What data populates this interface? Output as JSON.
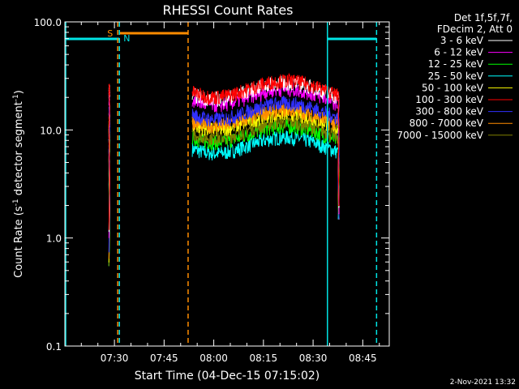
{
  "chart_data": {
    "type": "line",
    "title": "RHESSI Count Rates",
    "xlabel": "Start Time (04-Dec-15 07:15:02)",
    "ylabel_main": "Count Rate (s",
    "ylabel_sup1": "-1",
    "ylabel_mid": " detector segment",
    "ylabel_sup2": "-1",
    "ylabel_end": ")",
    "yscale": "log",
    "ylim": [
      0.1,
      100.0
    ],
    "xlim": [
      "07:15:02",
      "08:53:00"
    ],
    "y_ticks": [
      "0.1",
      "1.0",
      "10.0",
      "100.0"
    ],
    "x_ticks": [
      "07:30",
      "07:45",
      "08:00",
      "08:15",
      "08:30",
      "08:45"
    ],
    "legend_placement": "top-right",
    "legend_header": [
      "Det 1f,5f,7f,",
      "FDecim 2, Att 0"
    ],
    "series": [
      {
        "name": "3 - 6 keV",
        "color": "#ffffff"
      },
      {
        "name": "6 - 12 keV",
        "color": "#ff00ff"
      },
      {
        "name": "12 - 25 keV",
        "color": "#00ff00"
      },
      {
        "name": "25 - 50 keV",
        "color": "#00ffff"
      },
      {
        "name": "50 - 100 keV",
        "color": "#ffff00"
      },
      {
        "name": "100 - 300 keV",
        "color": "#ff0000"
      },
      {
        "name": "300 - 800 keV",
        "color": "#3030ff"
      },
      {
        "name": "800 - 7000 keV",
        "color": "#ff8c00"
      },
      {
        "name": "7000 - 15000 keV",
        "color": "#7f7f00"
      }
    ],
    "annotations": {
      "saa_label": "S",
      "night_label": "N",
      "night_color": "#00e5e5",
      "saa_color": "#ff8c00"
    },
    "timestamp": "2-Nov-2021 13:32"
  }
}
